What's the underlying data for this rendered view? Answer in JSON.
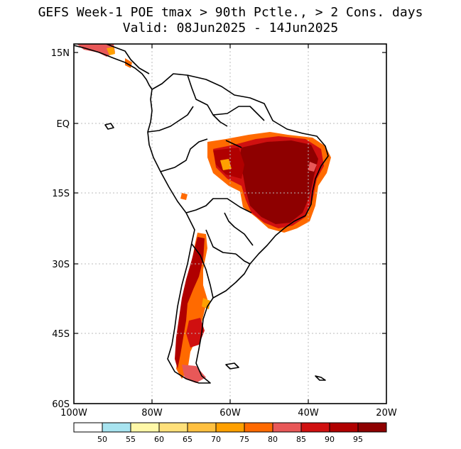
{
  "title": {
    "line1": "GEFS Week-1 POE tmax > 90th Pctle., > 2 Cons. days",
    "line2": "Valid: 08Jun2025 - 14Jun2025"
  },
  "map": {
    "lat_labels": [
      "15N",
      "EQ",
      "15S",
      "30S",
      "45S",
      "60S"
    ],
    "lon_labels": [
      "100W",
      "80W",
      "60W",
      "40W",
      "20W"
    ],
    "extent": {
      "lon_min": -100,
      "lon_max": -20,
      "lat_min": -60,
      "lat_max": 15
    }
  },
  "legend": {
    "labels": [
      "50",
      "55",
      "60",
      "65",
      "70",
      "75",
      "80",
      "85",
      "90",
      "95"
    ],
    "colors": [
      "#ffffff",
      "#a8e4f0",
      "#fff8a8",
      "#ffe07a",
      "#ffc040",
      "#ffa000",
      "#ff6a00",
      "#e85858",
      "#d01010",
      "#b00000",
      "#8e0000"
    ]
  }
}
